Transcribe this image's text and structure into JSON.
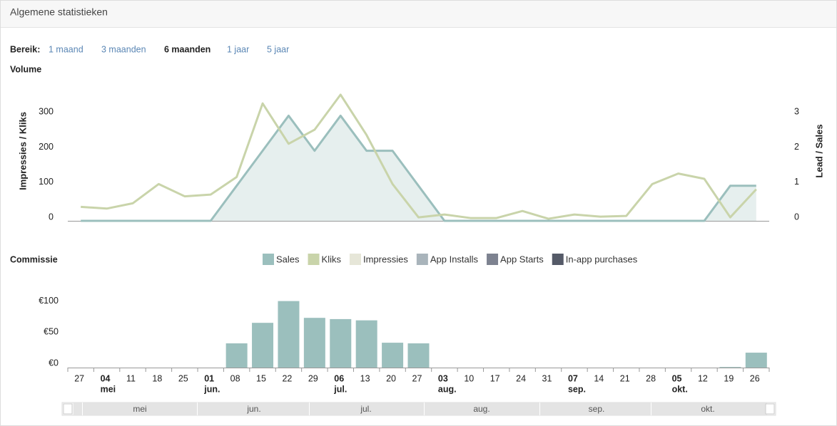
{
  "header": {
    "title": "Algemene statistieken"
  },
  "range": {
    "label": "Bereik:",
    "options": [
      "1 maand",
      "3 maanden",
      "6 maanden",
      "1 jaar",
      "5 jaar"
    ],
    "selected": 2
  },
  "chart_data": [
    {
      "type": "line",
      "title": "Volume",
      "y_label": "Impressies / Kliks",
      "y2_label": "Lead / Sales",
      "categories": [
        "27",
        "04",
        "11",
        "18",
        "25",
        "01",
        "08",
        "15",
        "22",
        "29",
        "06",
        "13",
        "20",
        "27",
        "03",
        "10",
        "17",
        "24",
        "31",
        "07",
        "14",
        "21",
        "28",
        "05",
        "12",
        "19",
        "26"
      ],
      "ylim": [
        0,
        370
      ],
      "yticks": [
        0,
        100,
        200,
        300
      ],
      "y2lim": [
        0,
        3.7
      ],
      "y2ticks": [
        0,
        1,
        2,
        3
      ],
      "series": [
        {
          "name": "Sales",
          "color": "#9bbfbd",
          "axis": "y2",
          "area": true,
          "values": [
            0,
            0,
            0,
            0,
            0,
            0,
            1,
            2,
            3,
            2,
            3,
            2,
            2,
            1,
            0,
            0,
            0,
            0,
            0,
            0,
            0,
            0,
            0,
            0,
            0,
            1,
            1
          ]
        },
        {
          "name": "Kliks",
          "color": "#c9d4aa",
          "values": [
            40,
            35,
            50,
            105,
            70,
            75,
            125,
            335,
            220,
            260,
            360,
            245,
            105,
            10,
            18,
            8,
            8,
            28,
            6,
            18,
            12,
            14,
            105,
            135,
            120,
            10,
            90
          ]
        },
        {
          "name": "Impressies",
          "color": "#e6e6d8"
        },
        {
          "name": "App Installs",
          "color": "#a9b4bb"
        },
        {
          "name": "App Starts",
          "color": "#7d8290"
        },
        {
          "name": "In-app purchases",
          "color": "#555a68"
        }
      ]
    },
    {
      "type": "bar",
      "title": "Commissie",
      "categories": [
        "27",
        "04",
        "11",
        "18",
        "25",
        "01",
        "08",
        "15",
        "22",
        "29",
        "06",
        "13",
        "20",
        "27",
        "03",
        "10",
        "17",
        "24",
        "31",
        "07",
        "14",
        "21",
        "28",
        "05",
        "12",
        "19",
        "26"
      ],
      "month_labels": [
        null,
        "mei",
        null,
        null,
        null,
        "jun.",
        null,
        null,
        null,
        null,
        "jul.",
        null,
        null,
        null,
        "aug.",
        null,
        null,
        null,
        null,
        "sep.",
        null,
        null,
        null,
        "okt.",
        null,
        null,
        null
      ],
      "values": [
        0,
        0,
        0,
        0,
        0,
        0,
        39,
        72,
        107,
        80,
        78,
        76,
        40,
        39,
        0,
        0,
        0,
        0,
        0,
        0,
        0,
        0,
        0,
        0,
        0,
        1,
        24
      ],
      "color": "#9bbfbd",
      "ylim": [
        0,
        110
      ],
      "yticks": [
        {
          "value": 0,
          "label": "€0"
        },
        {
          "value": 50,
          "label": "€50"
        },
        {
          "value": 100,
          "label": "€100"
        }
      ]
    }
  ],
  "navigator": {
    "labels": [
      "mei",
      "jun.",
      "jul.",
      "aug.",
      "sep.",
      "okt."
    ]
  }
}
